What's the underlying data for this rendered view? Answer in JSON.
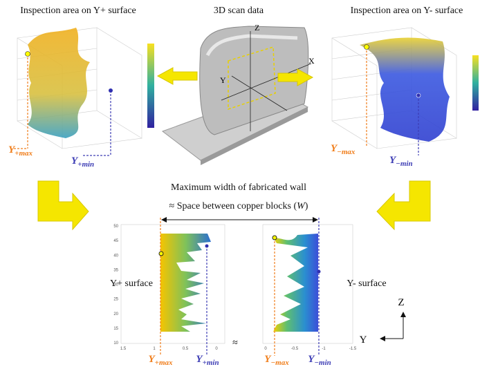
{
  "top": {
    "left_title": "Inspection area on Y+ surface",
    "center_title": "3D scan data",
    "right_title": "Inspection area on Y- surface"
  },
  "scan_axes": {
    "z": "Z",
    "x": "X",
    "y": "Y"
  },
  "left_plot": {
    "max_label": {
      "base": "Y",
      "sub": "+max"
    },
    "min_label": {
      "base": "Y",
      "sub": "+min"
    }
  },
  "right_plot": {
    "max_label": {
      "base": "Y",
      "sub": "−max"
    },
    "min_label": {
      "base": "Y",
      "sub": "−min"
    }
  },
  "middle": {
    "line1": "Maximum width of fabricated wall",
    "line2_pre": "≈ Space between copper blocks (",
    "line2_em": "W",
    "line2_post": ")"
  },
  "bottom_plot": {
    "yticks": [
      "50",
      "45",
      "40",
      "35",
      "30",
      "25",
      "20",
      "15",
      "10"
    ],
    "left_xticks": [
      "1.5",
      "1",
      "0.5",
      "0"
    ],
    "right_xticks": [
      "0",
      "-0.5",
      "-1",
      "-1.5"
    ],
    "break": "≈",
    "left_surface": "Y+ surface",
    "right_surface": "Y- surface",
    "labels": [
      {
        "base": "Y",
        "sub": "+max"
      },
      {
        "base": "Y",
        "sub": "+min"
      },
      {
        "base": "Y",
        "sub": "−max"
      },
      {
        "base": "Y",
        "sub": "−min"
      }
    ],
    "axes": {
      "z": "Z",
      "y": "Y"
    }
  }
}
